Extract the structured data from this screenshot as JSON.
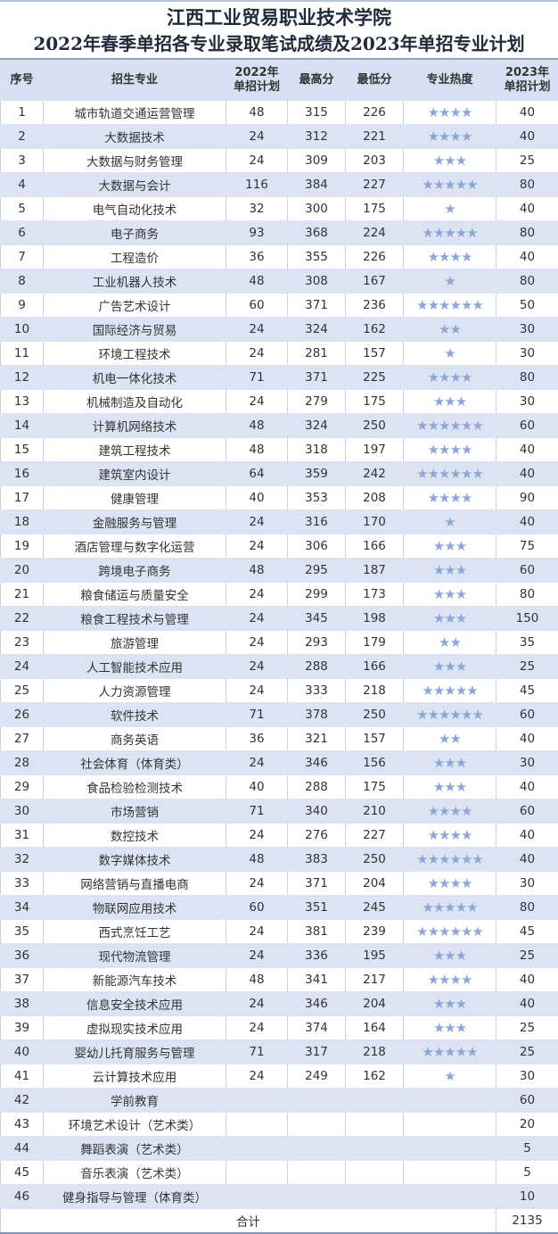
{
  "title": {
    "line1": "江西工业贸易职业技术学院",
    "line2": "2022年春季单招各专业录取笔试成绩及2023年单招专业计划"
  },
  "headers": {
    "index": "序号",
    "major": "招生专业",
    "plan2022_l1": "2022年",
    "plan2022_l2": "单招计划",
    "max": "最高分",
    "min": "最低分",
    "heat": "专业热度",
    "plan2023_l1": "2023年",
    "plan2023_l2": "单招计划"
  },
  "star_color": "#8ea6d6",
  "rows": [
    {
      "no": "1",
      "major": "城市轨道交通运营管理",
      "plan2022": "48",
      "max": "315",
      "min": "226",
      "stars": 4,
      "plan2023": "40"
    },
    {
      "no": "2",
      "major": "大数据技术",
      "plan2022": "24",
      "max": "312",
      "min": "221",
      "stars": 4,
      "plan2023": "40"
    },
    {
      "no": "3",
      "major": "大数据与财务管理",
      "plan2022": "24",
      "max": "309",
      "min": "203",
      "stars": 3,
      "plan2023": "25"
    },
    {
      "no": "4",
      "major": "大数据与会计",
      "plan2022": "116",
      "max": "384",
      "min": "227",
      "stars": 5,
      "plan2023": "80"
    },
    {
      "no": "5",
      "major": "电气自动化技术",
      "plan2022": "32",
      "max": "300",
      "min": "175",
      "stars": 1,
      "plan2023": "40"
    },
    {
      "no": "6",
      "major": "电子商务",
      "plan2022": "93",
      "max": "368",
      "min": "224",
      "stars": 5,
      "plan2023": "80"
    },
    {
      "no": "7",
      "major": "工程造价",
      "plan2022": "36",
      "max": "355",
      "min": "226",
      "stars": 4,
      "plan2023": "40"
    },
    {
      "no": "8",
      "major": "工业机器人技术",
      "plan2022": "48",
      "max": "308",
      "min": "167",
      "stars": 1,
      "plan2023": "80"
    },
    {
      "no": "9",
      "major": "广告艺术设计",
      "plan2022": "60",
      "max": "371",
      "min": "236",
      "stars": 6,
      "plan2023": "50"
    },
    {
      "no": "10",
      "major": "国际经济与贸易",
      "plan2022": "24",
      "max": "324",
      "min": "162",
      "stars": 2,
      "plan2023": "30"
    },
    {
      "no": "11",
      "major": "环境工程技术",
      "plan2022": "24",
      "max": "281",
      "min": "157",
      "stars": 1,
      "plan2023": "30"
    },
    {
      "no": "12",
      "major": "机电一体化技术",
      "plan2022": "71",
      "max": "371",
      "min": "225",
      "stars": 4,
      "plan2023": "80"
    },
    {
      "no": "13",
      "major": "机械制造及自动化",
      "plan2022": "24",
      "max": "279",
      "min": "175",
      "stars": 3,
      "plan2023": "30"
    },
    {
      "no": "14",
      "major": "计算机网络技术",
      "plan2022": "48",
      "max": "324",
      "min": "250",
      "stars": 6,
      "plan2023": "60"
    },
    {
      "no": "15",
      "major": "建筑工程技术",
      "plan2022": "48",
      "max": "318",
      "min": "197",
      "stars": 4,
      "plan2023": "40"
    },
    {
      "no": "16",
      "major": "建筑室内设计",
      "plan2022": "64",
      "max": "359",
      "min": "242",
      "stars": 6,
      "plan2023": "40"
    },
    {
      "no": "17",
      "major": "健康管理",
      "plan2022": "40",
      "max": "353",
      "min": "208",
      "stars": 4,
      "plan2023": "90"
    },
    {
      "no": "18",
      "major": "金融服务与管理",
      "plan2022": "24",
      "max": "316",
      "min": "170",
      "stars": 1,
      "plan2023": "40"
    },
    {
      "no": "19",
      "major": "酒店管理与数字化运营",
      "plan2022": "24",
      "max": "306",
      "min": "166",
      "stars": 3,
      "plan2023": "75"
    },
    {
      "no": "20",
      "major": "跨境电子商务",
      "plan2022": "48",
      "max": "295",
      "min": "187",
      "stars": 3,
      "plan2023": "60"
    },
    {
      "no": "21",
      "major": "粮食储运与质量安全",
      "plan2022": "24",
      "max": "299",
      "min": "173",
      "stars": 3,
      "plan2023": "80"
    },
    {
      "no": "22",
      "major": "粮食工程技术与管理",
      "plan2022": "24",
      "max": "345",
      "min": "198",
      "stars": 3,
      "plan2023": "150"
    },
    {
      "no": "23",
      "major": "旅游管理",
      "plan2022": "24",
      "max": "293",
      "min": "179",
      "stars": 2,
      "plan2023": "35"
    },
    {
      "no": "24",
      "major": "人工智能技术应用",
      "plan2022": "24",
      "max": "288",
      "min": "166",
      "stars": 3,
      "plan2023": "25"
    },
    {
      "no": "25",
      "major": "人力资源管理",
      "plan2022": "24",
      "max": "333",
      "min": "218",
      "stars": 5,
      "plan2023": "45"
    },
    {
      "no": "26",
      "major": "软件技术",
      "plan2022": "71",
      "max": "378",
      "min": "250",
      "stars": 6,
      "plan2023": "60"
    },
    {
      "no": "27",
      "major": "商务英语",
      "plan2022": "36",
      "max": "321",
      "min": "157",
      "stars": 2,
      "plan2023": "40"
    },
    {
      "no": "28",
      "major": "社会体育（体育类）",
      "plan2022": "24",
      "max": "346",
      "min": "156",
      "stars": 3,
      "plan2023": "30"
    },
    {
      "no": "29",
      "major": "食品检验检测技术",
      "plan2022": "40",
      "max": "288",
      "min": "175",
      "stars": 3,
      "plan2023": "40"
    },
    {
      "no": "30",
      "major": "市场营销",
      "plan2022": "71",
      "max": "340",
      "min": "210",
      "stars": 4,
      "plan2023": "60"
    },
    {
      "no": "31",
      "major": "数控技术",
      "plan2022": "24",
      "max": "276",
      "min": "227",
      "stars": 4,
      "plan2023": "40"
    },
    {
      "no": "32",
      "major": "数字媒体技术",
      "plan2022": "48",
      "max": "383",
      "min": "250",
      "stars": 6,
      "plan2023": "40"
    },
    {
      "no": "33",
      "major": "网络营销与直播电商",
      "plan2022": "24",
      "max": "371",
      "min": "204",
      "stars": 4,
      "plan2023": "30"
    },
    {
      "no": "34",
      "major": "物联网应用技术",
      "plan2022": "60",
      "max": "351",
      "min": "245",
      "stars": 5,
      "plan2023": "80"
    },
    {
      "no": "35",
      "major": "西式烹饪工艺",
      "plan2022": "24",
      "max": "381",
      "min": "239",
      "stars": 6,
      "plan2023": "45"
    },
    {
      "no": "36",
      "major": "现代物流管理",
      "plan2022": "24",
      "max": "336",
      "min": "195",
      "stars": 3,
      "plan2023": "25"
    },
    {
      "no": "37",
      "major": "新能源汽车技术",
      "plan2022": "48",
      "max": "341",
      "min": "217",
      "stars": 4,
      "plan2023": "40"
    },
    {
      "no": "38",
      "major": "信息安全技术应用",
      "plan2022": "24",
      "max": "346",
      "min": "204",
      "stars": 3,
      "plan2023": "40"
    },
    {
      "no": "39",
      "major": "虚拟现实技术应用",
      "plan2022": "24",
      "max": "374",
      "min": "164",
      "stars": 3,
      "plan2023": "25"
    },
    {
      "no": "40",
      "major": "婴幼儿托育服务与管理",
      "plan2022": "71",
      "max": "317",
      "min": "218",
      "stars": 5,
      "plan2023": "25"
    },
    {
      "no": "41",
      "major": "云计算技术应用",
      "plan2022": "24",
      "max": "249",
      "min": "162",
      "stars": 1,
      "plan2023": "30"
    },
    {
      "no": "42",
      "major": "学前教育",
      "plan2022": "",
      "max": "",
      "min": "",
      "stars": 0,
      "plan2023": "60"
    },
    {
      "no": "43",
      "major": "环境艺术设计（艺术类）",
      "plan2022": "",
      "max": "",
      "min": "",
      "stars": 0,
      "plan2023": "20"
    },
    {
      "no": "44",
      "major": "舞蹈表演（艺术类）",
      "plan2022": "",
      "max": "",
      "min": "",
      "stars": 0,
      "plan2023": "5"
    },
    {
      "no": "45",
      "major": "音乐表演（艺术类）",
      "plan2022": "",
      "max": "",
      "min": "",
      "stars": 0,
      "plan2023": "5"
    },
    {
      "no": "46",
      "major": "健身指导与管理（体育类）",
      "plan2022": "",
      "max": "",
      "min": "",
      "stars": 0,
      "plan2023": "10"
    }
  ],
  "total": {
    "label": "合计",
    "value": "2135"
  }
}
